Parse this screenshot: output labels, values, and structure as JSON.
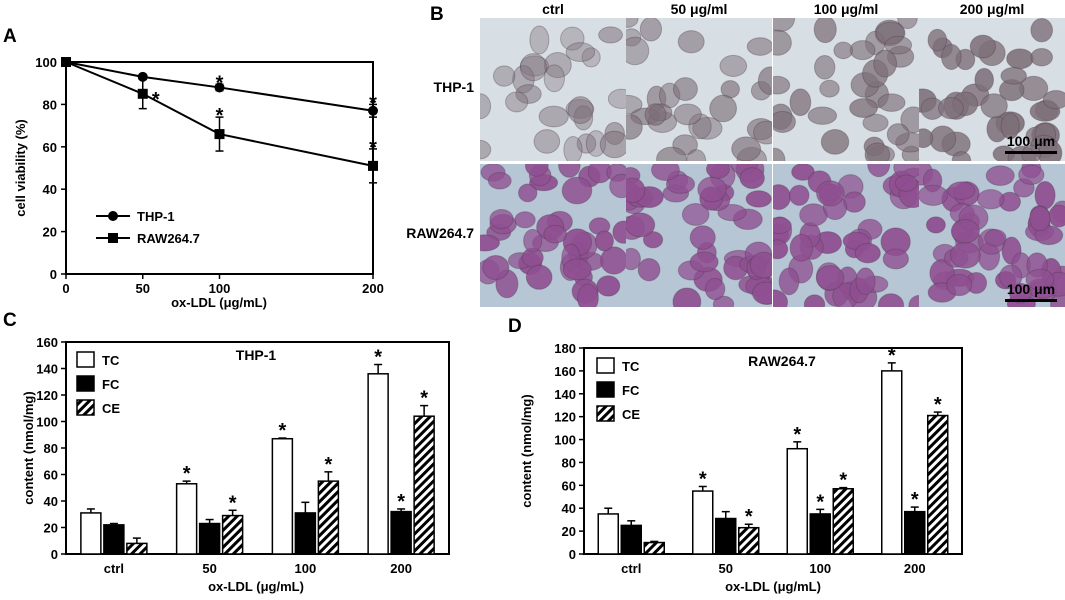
{
  "panels": {
    "A": {
      "label": "A",
      "chart_data": {
        "type": "line",
        "x": [
          0,
          50,
          100,
          200
        ],
        "xlabel": "ox-LDL (μg/mL)",
        "ylabel": "cell viability (%)",
        "xlim": [
          0,
          200
        ],
        "ylim": [
          0,
          100
        ],
        "xticks": [
          "0",
          "50",
          "100",
          "200"
        ],
        "yticks": [
          "0",
          "20",
          "40",
          "60",
          "80",
          "100"
        ],
        "series": [
          {
            "name": "THP-1",
            "marker": "circle",
            "values": [
              100,
              93,
              88,
              77
            ],
            "errors": [
              0,
              1,
              1.5,
              3
            ],
            "sig": [
              false,
              false,
              true,
              true
            ]
          },
          {
            "name": "RAW264.7",
            "marker": "square",
            "values": [
              100,
              85,
              66,
              51
            ],
            "errors": [
              0,
              7,
              8,
              8
            ],
            "sig": [
              false,
              true,
              true,
              true
            ]
          }
        ],
        "legend_position": "bottom-left",
        "significance_mark": "*"
      }
    },
    "B": {
      "label": "B",
      "columns": [
        "ctrl",
        "50 μg/ml",
        "100 μg/ml",
        "200 μg/ml"
      ],
      "rows": [
        "THP-1",
        "RAW264.7"
      ],
      "scale_bar": "100 μm",
      "stain_colors": {
        "thp1_background": "#d8dfe4",
        "thp1_cell": "#7d6f78",
        "raw_background": "#b6c6d4",
        "raw_cell": "#8f4f91"
      }
    },
    "C": {
      "label": "C",
      "chart_data": {
        "type": "bar",
        "title": "THP-1",
        "categories": [
          "ctrl",
          "50",
          "100",
          "200"
        ],
        "xlabel": "ox-LDL (μg/mL)",
        "ylabel": "content (nmol/mg)",
        "ylim": [
          0,
          160
        ],
        "yticks": [
          "0",
          "20",
          "40",
          "60",
          "80",
          "100",
          "120",
          "140",
          "160"
        ],
        "series": [
          {
            "name": "TC",
            "style": "white",
            "values": [
              31,
              53,
              87,
              136
            ],
            "errors": [
              3,
              2,
              0.5,
              7
            ],
            "sig": [
              false,
              true,
              true,
              true
            ]
          },
          {
            "name": "FC",
            "style": "black",
            "values": [
              22,
              23,
              31,
              32
            ],
            "errors": [
              1,
              3,
              8,
              2
            ],
            "sig": [
              false,
              false,
              false,
              true
            ]
          },
          {
            "name": "CE",
            "style": "hatched",
            "values": [
              8,
              29,
              55,
              104
            ],
            "errors": [
              4,
              4,
              7,
              8
            ],
            "sig": [
              false,
              true,
              true,
              true
            ]
          }
        ],
        "significance_mark": "*"
      }
    },
    "D": {
      "label": "D",
      "chart_data": {
        "type": "bar",
        "title": "RAW264.7",
        "categories": [
          "ctrl",
          "50",
          "100",
          "200"
        ],
        "xlabel": "ox-LDL (μg/mL)",
        "ylabel": "content (nmol/mg)",
        "ylim": [
          0,
          180
        ],
        "yticks": [
          "0",
          "20",
          "40",
          "60",
          "80",
          "100",
          "120",
          "140",
          "160",
          "180"
        ],
        "series": [
          {
            "name": "TC",
            "style": "white",
            "values": [
              35,
              55,
              92,
              160
            ],
            "errors": [
              5,
              4,
              6,
              7
            ],
            "sig": [
              false,
              true,
              true,
              true
            ]
          },
          {
            "name": "FC",
            "style": "black",
            "values": [
              25,
              31,
              35,
              37
            ],
            "errors": [
              4,
              6,
              4,
              4
            ],
            "sig": [
              false,
              false,
              true,
              true
            ]
          },
          {
            "name": "CE",
            "style": "hatched",
            "values": [
              10,
              23,
              57,
              121
            ],
            "errors": [
              1,
              3,
              1,
              3
            ],
            "sig": [
              false,
              true,
              true,
              true
            ]
          }
        ],
        "significance_mark": "*"
      }
    }
  }
}
